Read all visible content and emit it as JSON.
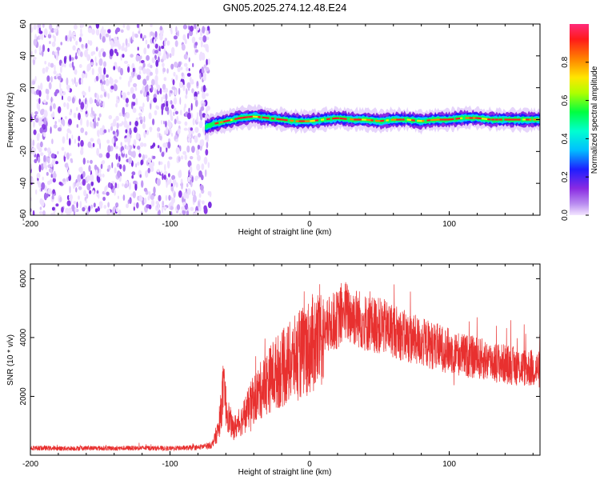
{
  "title": "GN05.2025.274.12.48.E24",
  "chart_data": [
    {
      "type": "heatmap",
      "title": "GN05.2025.274.12.48.E24",
      "xlabel": "Height of straight line (km)",
      "ylabel": "Frequency (Hz)",
      "xlim": [
        -200,
        165
      ],
      "ylim": [
        -60,
        60
      ],
      "x_ticks": [
        -200,
        -100,
        0,
        100
      ],
      "y_ticks": [
        -60,
        -40,
        -20,
        0,
        20,
        40,
        60
      ],
      "noise_region_x": [
        -200,
        -72
      ],
      "signal_track": {
        "x": [
          -75,
          -70,
          -60,
          -50,
          -40,
          -30,
          -20,
          -10,
          0,
          10,
          20,
          30,
          40,
          50,
          60,
          70,
          80,
          90,
          100,
          110,
          120,
          130,
          140,
          150,
          160,
          165
        ],
        "frequency": [
          -5,
          -3,
          -1,
          1,
          2,
          1,
          0,
          -1,
          -1,
          0,
          1,
          0,
          0,
          -1,
          0,
          0,
          -1,
          0,
          0,
          1,
          1,
          0,
          0,
          0,
          0,
          0
        ]
      },
      "colorbar": {
        "label": "Normalized spectral amplitude",
        "range": [
          0.0,
          1.0
        ],
        "ticks": [
          0.0,
          0.2,
          0.4,
          0.6,
          0.8
        ],
        "colors": [
          "#eedcff",
          "#8a2be2",
          "#0000ff",
          "#00bfff",
          "#00ff80",
          "#ffff00",
          "#ff8000",
          "#ff0000",
          "#ff1a6e"
        ]
      }
    },
    {
      "type": "line",
      "xlabel": "Height of straight line (km)",
      "ylabel": "SNR (10 * v/v)",
      "xlim": [
        -200,
        165
      ],
      "ylim": [
        0,
        6500
      ],
      "x_ticks": [
        -200,
        -100,
        0,
        100
      ],
      "y_ticks": [
        2000,
        4000,
        6000
      ],
      "series": [
        {
          "name": "SNR",
          "color": "#e8302f",
          "x": [
            -200,
            -180,
            -160,
            -140,
            -120,
            -100,
            -80,
            -70,
            -65,
            -62,
            -60,
            -58,
            -55,
            -50,
            -45,
            -40,
            -35,
            -30,
            -25,
            -20,
            -15,
            -10,
            -5,
            0,
            5,
            10,
            15,
            20,
            25,
            30,
            35,
            40,
            50,
            60,
            70,
            80,
            90,
            100,
            110,
            120,
            130,
            140,
            150,
            160,
            165
          ],
          "values": [
            250,
            230,
            240,
            235,
            245,
            230,
            260,
            350,
            900,
            2200,
            1700,
            1300,
            900,
            1100,
            1500,
            1900,
            2200,
            2500,
            2800,
            2900,
            3100,
            3300,
            3500,
            3700,
            3900,
            4150,
            4500,
            4600,
            4900,
            4750,
            4650,
            4500,
            4400,
            4250,
            4000,
            3850,
            3700,
            3550,
            3400,
            3300,
            3200,
            3100,
            3000,
            2950,
            2900
          ]
        }
      ]
    }
  ]
}
